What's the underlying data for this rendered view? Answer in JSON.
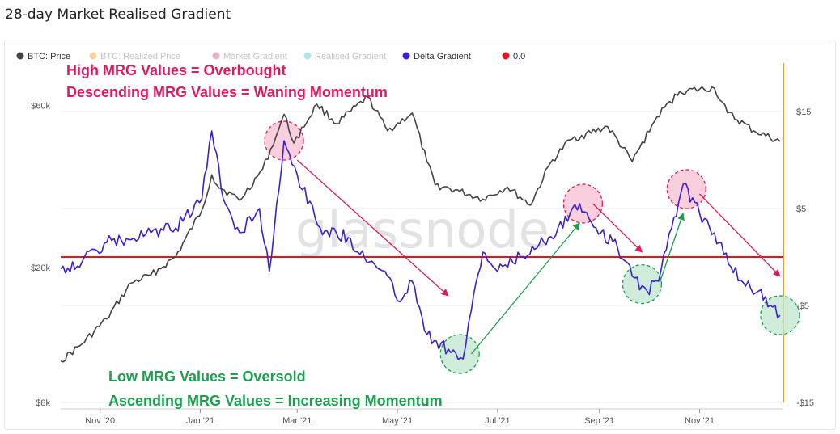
{
  "page": {
    "title": "28-day Market Realised Gradient"
  },
  "watermark": "glassnode",
  "colors": {
    "price": "#444444",
    "realized": "#f39c2c",
    "market": "#c2578e",
    "realised_gradient": "#57c4c7",
    "delta": "#3a1fd6",
    "zero": "#e3141b",
    "overbought": "#e3185e",
    "oversold": "#1aa04c",
    "circle_pink_fill": "#f7bfd3",
    "circle_green_fill": "#bfe6cf"
  },
  "legend": [
    {
      "label": "BTC: Price",
      "color": "#444444",
      "active": true
    },
    {
      "label": "BTC: Realized Price",
      "color": "#f39c2c",
      "active": false
    },
    {
      "label": "Market Gradient",
      "color": "#c2578e",
      "active": false
    },
    {
      "label": "Realised Gradient",
      "color": "#57c4c7",
      "active": false
    },
    {
      "label": "Delta Gradient",
      "color": "#3a1fd6",
      "active": true
    },
    {
      "label": "0.0",
      "color": "#e3141b",
      "active": true
    }
  ],
  "annotations": {
    "overbought_1": "High MRG Values = Overbought",
    "overbought_2": "Descending MRG Values = Waning Momentum",
    "oversold_1": "Low MRG Values = Oversold",
    "oversold_2": "Ascending MRG Values = Increasing Momentum"
  },
  "chart_data": {
    "type": "line",
    "title": "28-day Market Realised Gradient",
    "x_range": [
      "2020-10-08",
      "2021-12-22"
    ],
    "x_ticks": [
      {
        "date": "2020-11-01",
        "label": "Nov '20"
      },
      {
        "date": "2021-01-01",
        "label": "Jan '21"
      },
      {
        "date": "2021-03-01",
        "label": "Mar '21"
      },
      {
        "date": "2021-05-01",
        "label": "May '21"
      },
      {
        "date": "2021-07-01",
        "label": "Jul '21"
      },
      {
        "date": "2021-09-01",
        "label": "Sep '21"
      },
      {
        "date": "2021-11-01",
        "label": "Nov '21"
      }
    ],
    "y_left": {
      "scale": "log",
      "range": [
        8000,
        80000
      ],
      "ticks": [
        {
          "value": 8000,
          "label": "$8k"
        },
        {
          "value": 20000,
          "label": "$20k"
        },
        {
          "value": 60000,
          "label": "$60k"
        }
      ]
    },
    "y_right": {
      "scale": "linear",
      "range": [
        -15,
        20
      ],
      "ticks": [
        {
          "value": 15,
          "label": "$15"
        },
        {
          "value": 5,
          "label": "$5"
        },
        {
          "value": -5,
          "label": "-$5"
        },
        {
          "value": -15,
          "label": "-$15"
        }
      ]
    },
    "zero_line": 0,
    "series": [
      {
        "name": "BTC: Price",
        "axis": "left",
        "points": [
          [
            "2020-10-08",
            10600
          ],
          [
            "2020-10-21",
            11900
          ],
          [
            "2020-11-05",
            14100
          ],
          [
            "2020-11-20",
            18000
          ],
          [
            "2020-12-02",
            19000
          ],
          [
            "2020-12-17",
            21500
          ],
          [
            "2021-01-02",
            29500
          ],
          [
            "2021-01-08",
            37500
          ],
          [
            "2021-01-11",
            35000
          ],
          [
            "2021-01-25",
            31500
          ],
          [
            "2021-02-08",
            39000
          ],
          [
            "2021-02-16",
            48500
          ],
          [
            "2021-02-21",
            56500
          ],
          [
            "2021-02-27",
            46500
          ],
          [
            "2021-03-13",
            60500
          ],
          [
            "2021-03-25",
            53000
          ],
          [
            "2021-04-13",
            63500
          ],
          [
            "2021-04-25",
            50500
          ],
          [
            "2021-05-10",
            57000
          ],
          [
            "2021-05-19",
            41000
          ],
          [
            "2021-05-24",
            35000
          ],
          [
            "2021-06-08",
            33500
          ],
          [
            "2021-06-22",
            31800
          ],
          [
            "2021-07-07",
            34500
          ],
          [
            "2021-07-21",
            30500
          ],
          [
            "2021-08-02",
            40500
          ],
          [
            "2021-08-14",
            47500
          ],
          [
            "2021-09-06",
            52000
          ],
          [
            "2021-09-21",
            41000
          ],
          [
            "2021-10-06",
            55500
          ],
          [
            "2021-10-20",
            66000
          ],
          [
            "2021-11-10",
            67500
          ],
          [
            "2021-11-18",
            57000
          ],
          [
            "2021-12-04",
            50500
          ],
          [
            "2021-12-20",
            47000
          ]
        ]
      },
      {
        "name": "Delta Gradient",
        "axis": "right",
        "points": [
          [
            "2020-10-08",
            -1.2
          ],
          [
            "2020-10-21",
            -0.5
          ],
          [
            "2020-11-05",
            1.5
          ],
          [
            "2020-11-20",
            1.8
          ],
          [
            "2020-12-02",
            2.5
          ],
          [
            "2020-12-17",
            3.0
          ],
          [
            "2021-01-02",
            6.0
          ],
          [
            "2021-01-08",
            13.0
          ],
          [
            "2021-01-15",
            6.0
          ],
          [
            "2021-01-25",
            2.5
          ],
          [
            "2021-02-06",
            5.0
          ],
          [
            "2021-02-12",
            -1.5
          ],
          [
            "2021-02-21",
            12.0
          ],
          [
            "2021-03-01",
            8.5
          ],
          [
            "2021-03-15",
            3.0
          ],
          [
            "2021-04-01",
            2.0
          ],
          [
            "2021-04-14",
            -0.5
          ],
          [
            "2021-04-25",
            -2.0
          ],
          [
            "2021-05-01",
            -4.5
          ],
          [
            "2021-05-10",
            -2.5
          ],
          [
            "2021-05-19",
            -8.0
          ],
          [
            "2021-06-01",
            -9.5
          ],
          [
            "2021-06-10",
            -10.5
          ],
          [
            "2021-06-15",
            -5.5
          ],
          [
            "2021-06-22",
            0.5
          ],
          [
            "2021-07-01",
            -1.5
          ],
          [
            "2021-07-15",
            0.0
          ],
          [
            "2021-08-01",
            2.0
          ],
          [
            "2021-08-20",
            5.5
          ],
          [
            "2021-08-30",
            3.0
          ],
          [
            "2021-09-12",
            1.0
          ],
          [
            "2021-09-21",
            -2.0
          ],
          [
            "2021-09-30",
            -3.5
          ],
          [
            "2021-10-07",
            -2.5
          ],
          [
            "2021-10-15",
            3.0
          ],
          [
            "2021-10-22",
            7.5
          ],
          [
            "2021-11-01",
            4.5
          ],
          [
            "2021-11-10",
            2.5
          ],
          [
            "2021-11-20",
            -1.0
          ],
          [
            "2021-11-29",
            -3.0
          ],
          [
            "2021-12-07",
            -3.5
          ],
          [
            "2021-12-14",
            -5.0
          ],
          [
            "2021-12-20",
            -6.0
          ]
        ]
      }
    ],
    "highlights": [
      {
        "tone": "overbought",
        "date": "2021-02-21",
        "value": 12.0
      },
      {
        "tone": "oversold",
        "date": "2021-06-08",
        "value": -10.0
      },
      {
        "tone": "overbought",
        "date": "2021-08-22",
        "value": 5.5
      },
      {
        "tone": "oversold",
        "date": "2021-09-27",
        "value": -2.8
      },
      {
        "tone": "overbought",
        "date": "2021-10-24",
        "value": 7.0
      },
      {
        "tone": "oversold",
        "date": "2021-12-20",
        "value": -6.0
      }
    ],
    "arrows": [
      {
        "tone": "overbought",
        "from": [
          "2021-03-01",
          10.0
        ],
        "to": [
          "2021-06-01",
          -4.0
        ]
      },
      {
        "tone": "oversold",
        "from": [
          "2021-06-15",
          -10.0
        ],
        "to": [
          "2021-08-20",
          3.5
        ]
      },
      {
        "tone": "overbought",
        "from": [
          "2021-08-28",
          5.5
        ],
        "to": [
          "2021-09-27",
          0.5
        ]
      },
      {
        "tone": "oversold",
        "from": [
          "2021-10-08",
          -2.5
        ],
        "to": [
          "2021-10-22",
          4.5
        ]
      },
      {
        "tone": "overbought",
        "from": [
          "2021-11-01",
          6.5
        ],
        "to": [
          "2021-12-20",
          -2.0
        ]
      }
    ]
  }
}
